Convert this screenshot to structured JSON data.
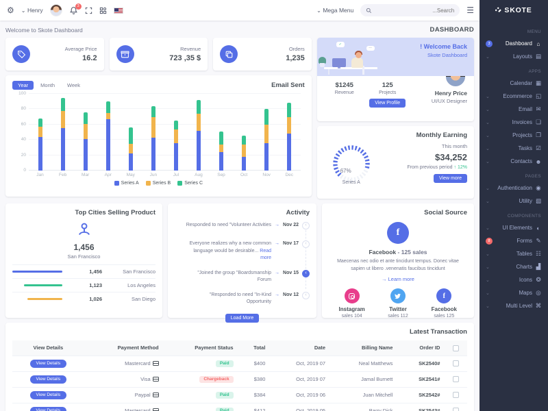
{
  "icons": {
    "gear": "⚙",
    "chevron_down": "⌄",
    "hamburger": "☰",
    "arrow_right": "→",
    "arrow_up": "↑",
    "marker_arrow": "‹",
    "facebook_glyph": "f",
    "check": "✓",
    "dots": "⋯"
  },
  "colors": {
    "primary": "#556ee6",
    "success": "#34c38f",
    "warning": "#f1b44c",
    "danger": "#f46a6a",
    "info": "#50a5f1",
    "pink": "#e83e8c",
    "sidebar_bg": "#2a3042",
    "body_bg": "#f8f8fb",
    "heading": "#495057",
    "muted": "#74788d"
  },
  "header": {
    "user_name": "Henry",
    "notification_count": "3",
    "mega_menu_label": "Mega Menu",
    "search_placeholder": "...Search"
  },
  "page": {
    "welcome_text": "Welcome to Skote Dashboard",
    "title": "DASHBOARD"
  },
  "stats": {
    "cards": [
      {
        "label": "Average Price",
        "value": "16.2",
        "icon": "tag-icon"
      },
      {
        "label": "Revenue",
        "value": "723 ,35 $",
        "icon": "archive-icon"
      },
      {
        "label": "Orders",
        "value": "1,235",
        "icon": "copy-icon"
      }
    ]
  },
  "welcome_card": {
    "title": "! Welcome Back",
    "subtitle": "Skote Dashboard",
    "stats": [
      {
        "value": "$1245",
        "label": "Revenue"
      },
      {
        "value": "125",
        "label": "Projects"
      }
    ],
    "button_label": "View Profile",
    "user_name": "Henry Price",
    "user_role": "UI/UX Designer"
  },
  "chart_data": {
    "type": "bar",
    "stacked": true,
    "title": "Email Sent",
    "tabs": [
      "Year",
      "Month",
      "Week"
    ],
    "active_tab": "Year",
    "categories": [
      "Jan",
      "Feb",
      "Mar",
      "Apr",
      "May",
      "Jun",
      "Jul",
      "Aug",
      "Sep",
      "Oct",
      "Nov",
      "Dec"
    ],
    "series": [
      {
        "name": "Series A",
        "color": "#556ee6",
        "values": [
          44,
          55,
          41,
          67,
          22,
          43,
          36,
          52,
          24,
          18,
          36,
          48
        ]
      },
      {
        "name": "Series B",
        "color": "#f1b44c",
        "values": [
          13,
          23,
          20,
          8,
          13,
          27,
          18,
          22,
          10,
          16,
          24,
          22
        ]
      },
      {
        "name": "Series C",
        "color": "#34c38f",
        "values": [
          11,
          17,
          15,
          15,
          21,
          14,
          11,
          18,
          17,
          12,
          20,
          18
        ]
      }
    ],
    "xlabel": "",
    "ylabel": "",
    "ylim": [
      0,
      100
    ],
    "yticks": [
      0,
      20,
      40,
      60,
      80,
      100
    ],
    "grid": true,
    "legend_position": "bottom"
  },
  "monthly_earning": {
    "title": "Monthly Earning",
    "period_label": "This month",
    "amount": "$34,252",
    "comparison_text": "From previous period",
    "delta": "12%",
    "delta_direction": "up",
    "gauge_percent": "67%",
    "gauge_series": "Series A",
    "button_label": "View more"
  },
  "top_cities": {
    "title": "Top Cities Selling Product",
    "total_value": "1,456",
    "total_city": "San Francisco",
    "rows": [
      {
        "city": "San Francisco",
        "value": "1,456",
        "color": "#556ee6",
        "pct": 100
      },
      {
        "city": "Los Angeles",
        "value": "1,123",
        "color": "#34c38f",
        "pct": 77
      },
      {
        "city": "San Diego",
        "value": "1,026",
        "color": "#f1b44c",
        "pct": 70
      }
    ]
  },
  "activity": {
    "title": "Activity",
    "items": [
      {
        "text": "Responded to need \"Volunteer Activities",
        "link": "",
        "date": "Nov 22",
        "active": false
      },
      {
        "text": "Everyone realizes why a new common language would be desirable...",
        "link": "Read more",
        "date": "Nov 17",
        "active": false
      },
      {
        "text": "\"Joined the group \"Boardsmanship Forum",
        "link": "",
        "date": "Nov 15",
        "active": true
      },
      {
        "text": "\"Responded to need \"In-Kind Opportunity",
        "link": "",
        "date": "Nov 12",
        "active": false
      }
    ],
    "button_label": "Load More"
  },
  "social": {
    "title": "Social Source",
    "main_name": "Facebook",
    "main_sales": " - 125 sales",
    "description": "Maecenas nec odio et ante tincidunt tempus. Donec vitae sapien ut libero .venenatis faucibus tincidunt",
    "learn_more": "Learn more",
    "accounts": [
      {
        "name": "Instagram",
        "sales": "sales 104",
        "color": "#e83e8c",
        "icon": "instagram-icon"
      },
      {
        "name": "Twitter",
        "sales": "sales 112",
        "color": "#50a5f1",
        "icon": "twitter-icon"
      },
      {
        "name": "Facebook",
        "sales": "sales 125",
        "color": "#556ee6",
        "icon": "facebook-icon"
      }
    ]
  },
  "transactions": {
    "title": "Latest Transaction",
    "columns": [
      "View Details",
      "Payment Method",
      "Payment Status",
      "Total",
      "Date",
      "Billing Name",
      "Order ID"
    ],
    "rows": [
      {
        "action": "View Details",
        "method": "Mastercard",
        "status": "Paid",
        "total": "$400",
        "date": "Oct, 2019 07",
        "name": "Neal Matthews",
        "order_id": "SK2540#"
      },
      {
        "action": "View Details",
        "method": "Visa",
        "status": "Chargeback",
        "total": "$380",
        "date": "Oct, 2019 07",
        "name": "Jamal Burnett",
        "order_id": "SK2541#"
      },
      {
        "action": "View Details",
        "method": "Paypal",
        "status": "Paid",
        "total": "$384",
        "date": "Oct, 2019 06",
        "name": "Juan Mitchell",
        "order_id": "SK2542#"
      },
      {
        "action": "View Details",
        "method": "Mastercard",
        "status": "Paid",
        "total": "$412",
        "date": "Oct, 2019 05",
        "name": "Barry Dick",
        "order_id": "SK2543#"
      }
    ]
  },
  "sidebar": {
    "brand": "SKOTE",
    "sections": [
      {
        "label": "MENU",
        "items": [
          {
            "label": "Dashboard",
            "icon": "home-icon",
            "glyph": "⌂",
            "badge": "3",
            "badge_color": "#556ee6",
            "active": true
          },
          {
            "label": "Layouts",
            "icon": "layouts-icon",
            "glyph": "▤",
            "arrow": true
          }
        ]
      },
      {
        "label": "APPS",
        "items": [
          {
            "label": "Calendar",
            "icon": "calendar-icon",
            "glyph": "▦"
          },
          {
            "label": "Ecommerce",
            "icon": "ecommerce-icon",
            "glyph": "◱",
            "arrow": true
          },
          {
            "label": "Email",
            "icon": "email-icon",
            "glyph": "✉",
            "arrow": true
          },
          {
            "label": "Invoices",
            "icon": "invoices-icon",
            "glyph": "❏",
            "arrow": true
          },
          {
            "label": "Projects",
            "icon": "projects-icon",
            "glyph": "❐",
            "arrow": true
          },
          {
            "label": "Tasks",
            "icon": "tasks-icon",
            "glyph": "☑",
            "arrow": true
          },
          {
            "label": "Contacts",
            "icon": "contacts-icon",
            "glyph": "☻",
            "arrow": true
          }
        ]
      },
      {
        "label": "PAGES",
        "items": [
          {
            "label": "Authentication",
            "icon": "authentication-icon",
            "glyph": "◉",
            "arrow": true
          },
          {
            "label": "Utility",
            "icon": "utility-icon",
            "glyph": "▧",
            "arrow": true
          }
        ]
      },
      {
        "label": "COMPONENTS",
        "items": [
          {
            "label": "UI Elements",
            "icon": "ui-elements-icon",
            "glyph": "◐",
            "arrow": true
          },
          {
            "label": "Forms",
            "icon": "forms-icon",
            "glyph": "✎",
            "badge": "8",
            "badge_color": "#f46a6a"
          },
          {
            "label": "Tables",
            "icon": "tables-icon",
            "glyph": "☷",
            "arrow": true
          },
          {
            "label": "Charts",
            "icon": "charts-icon",
            "glyph": "▟",
            "arrow": true
          },
          {
            "label": "Icons",
            "icon": "icons-icon",
            "glyph": "❂",
            "arrow": true
          },
          {
            "label": "Maps",
            "icon": "maps-icon",
            "glyph": "◎",
            "arrow": true
          },
          {
            "label": "Multi Level",
            "icon": "multi-level-icon",
            "glyph": "⌘",
            "arrow": true
          }
        ]
      }
    ]
  }
}
